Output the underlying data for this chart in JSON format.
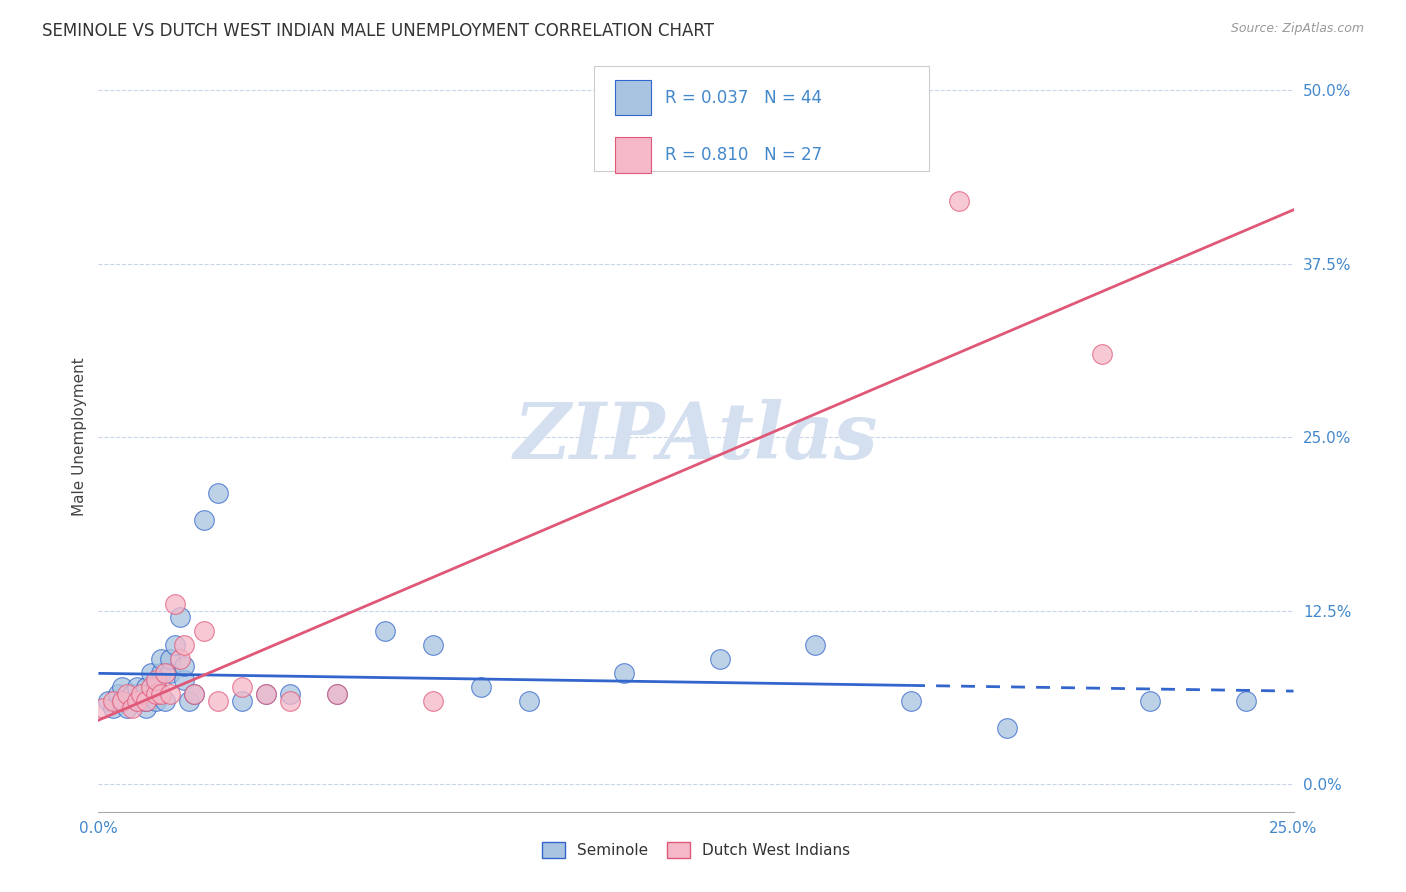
{
  "title": "SEMINOLE VS DUTCH WEST INDIAN MALE UNEMPLOYMENT CORRELATION CHART",
  "source": "Source: ZipAtlas.com",
  "ylabel": "Male Unemployment",
  "ytick_vals": [
    0.0,
    0.125,
    0.25,
    0.375,
    0.5
  ],
  "xlim": [
    0.0,
    0.25
  ],
  "ylim": [
    -0.02,
    0.52
  ],
  "seminole_R": 0.037,
  "seminole_N": 44,
  "dwi_R": 0.81,
  "dwi_N": 27,
  "seminole_color": "#a8c4e0",
  "dwi_color": "#f4b8c8",
  "seminole_line_color": "#3366cc",
  "dwi_line_color": "#e05878",
  "watermark_color": "#d4dff0",
  "background_color": "#ffffff",
  "grid_color": "#c8d4e8",
  "seminole_x": [
    0.002,
    0.003,
    0.004,
    0.005,
    0.005,
    0.006,
    0.007,
    0.008,
    0.008,
    0.009,
    0.01,
    0.01,
    0.01,
    0.011,
    0.012,
    0.012,
    0.013,
    0.013,
    0.014,
    0.015,
    0.015,
    0.016,
    0.017,
    0.018,
    0.018,
    0.019,
    0.02,
    0.022,
    0.025,
    0.03,
    0.035,
    0.04,
    0.05,
    0.06,
    0.07,
    0.08,
    0.09,
    0.11,
    0.13,
    0.15,
    0.17,
    0.19,
    0.22,
    0.24
  ],
  "seminole_y": [
    0.06,
    0.055,
    0.065,
    0.06,
    0.07,
    0.055,
    0.065,
    0.06,
    0.07,
    0.06,
    0.055,
    0.06,
    0.07,
    0.08,
    0.06,
    0.07,
    0.08,
    0.09,
    0.06,
    0.08,
    0.09,
    0.1,
    0.12,
    0.075,
    0.085,
    0.06,
    0.065,
    0.19,
    0.21,
    0.06,
    0.065,
    0.065,
    0.065,
    0.11,
    0.1,
    0.07,
    0.06,
    0.08,
    0.09,
    0.1,
    0.06,
    0.04,
    0.06,
    0.06
  ],
  "dwi_x": [
    0.001,
    0.003,
    0.005,
    0.006,
    0.007,
    0.008,
    0.009,
    0.01,
    0.011,
    0.012,
    0.012,
    0.013,
    0.014,
    0.015,
    0.016,
    0.017,
    0.018,
    0.02,
    0.022,
    0.025,
    0.03,
    0.035,
    0.04,
    0.05,
    0.07,
    0.18,
    0.21
  ],
  "dwi_y": [
    0.055,
    0.06,
    0.06,
    0.065,
    0.055,
    0.06,
    0.065,
    0.06,
    0.07,
    0.065,
    0.075,
    0.065,
    0.08,
    0.065,
    0.13,
    0.09,
    0.1,
    0.065,
    0.11,
    0.06,
    0.07,
    0.065,
    0.06,
    0.065,
    0.06,
    0.42,
    0.31
  ]
}
